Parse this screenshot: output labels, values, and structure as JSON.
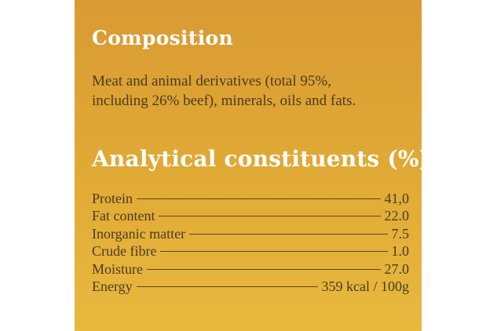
{
  "composition": {
    "title": "Composition",
    "text_lines": [
      "Meat and animal derivatives (total 95%,",
      "including 26% beef), minerals, oils and fats."
    ]
  },
  "analytical": {
    "title": "Analytical constituents (%)",
    "rows": [
      [
        "Protein",
        "41,0"
      ],
      [
        "Fat content",
        "22.0"
      ],
      [
        "Inorganic matter",
        "7.5"
      ],
      [
        "Crude fibre",
        "1.0"
      ],
      [
        "Moisture",
        "27.0"
      ],
      [
        "Energy",
        "359 kcal / 100g"
      ]
    ]
  }
}
